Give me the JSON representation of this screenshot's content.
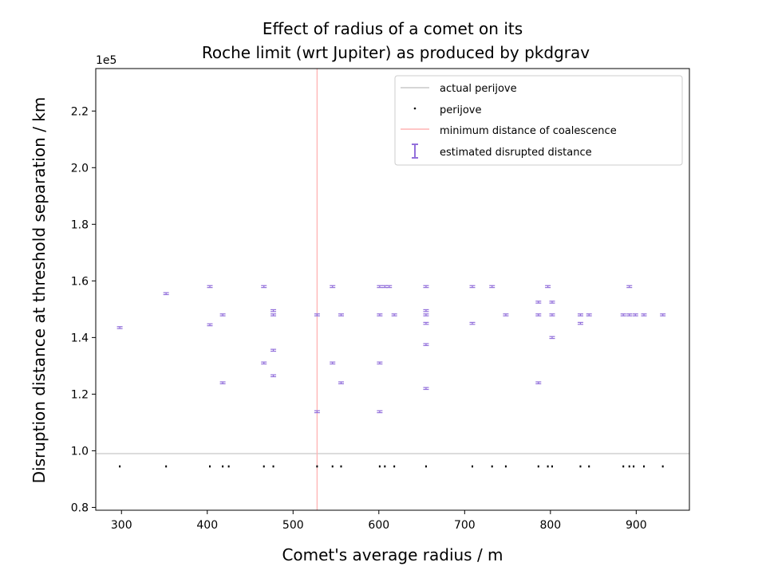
{
  "chart_data": {
    "type": "scatter",
    "title_line1": "Effect of radius of a comet on its",
    "title_line2": "Roche limit (wrt Jupiter) as produced by pkdgrav",
    "xlabel": "Comet's average radius / m",
    "ylabel": "Disruption distance at threshold separation / km",
    "y_offset_label": "1e5",
    "xlim": [
      270,
      962
    ],
    "ylim": [
      0.79,
      2.35
    ],
    "y_scale_factor": 100000,
    "x_ticks": [
      300,
      400,
      500,
      600,
      700,
      800,
      900
    ],
    "y_ticks": [
      0.8,
      1.0,
      1.2,
      1.4,
      1.6,
      1.8,
      2.0,
      2.2
    ],
    "y_tick_labels": [
      "0.8",
      "1.0",
      "1.2",
      "1.4",
      "1.6",
      "1.8",
      "2.0",
      "2.2"
    ],
    "x_tick_labels": [
      "300",
      "400",
      "500",
      "600",
      "700",
      "800",
      "900"
    ],
    "actual_perijove": 0.99,
    "min_coalescence_radius": 528,
    "legend": {
      "placement": "top-right",
      "entries": [
        "actual perijove",
        "perijove",
        "minimum distance of coalescence",
        "estimated disrupted distance"
      ]
    },
    "colors": {
      "actual_perijove": "#c8c8c8",
      "perijove": "#000000",
      "coalescence": "#ffb3b3",
      "disrupted": "#9370db"
    },
    "series": [
      {
        "name": "estimated disrupted distance",
        "points": [
          {
            "x": 298,
            "y": 1.435
          },
          {
            "x": 352,
            "y": 1.555
          },
          {
            "x": 403,
            "y": 1.58
          },
          {
            "x": 403,
            "y": 1.445
          },
          {
            "x": 418,
            "y": 1.48
          },
          {
            "x": 418,
            "y": 1.24
          },
          {
            "x": 466,
            "y": 1.58
          },
          {
            "x": 466,
            "y": 1.31
          },
          {
            "x": 477,
            "y": 1.495
          },
          {
            "x": 477,
            "y": 1.48
          },
          {
            "x": 477,
            "y": 1.355
          },
          {
            "x": 477,
            "y": 1.265
          },
          {
            "x": 528,
            "y": 1.48
          },
          {
            "x": 528,
            "y": 1.138
          },
          {
            "x": 546,
            "y": 1.58
          },
          {
            "x": 546,
            "y": 1.31
          },
          {
            "x": 556,
            "y": 1.48
          },
          {
            "x": 556,
            "y": 1.24
          },
          {
            "x": 601,
            "y": 1.58
          },
          {
            "x": 601,
            "y": 1.48
          },
          {
            "x": 601,
            "y": 1.31
          },
          {
            "x": 601,
            "y": 1.138
          },
          {
            "x": 607,
            "y": 1.58
          },
          {
            "x": 612,
            "y": 1.58
          },
          {
            "x": 618,
            "y": 1.48
          },
          {
            "x": 655,
            "y": 1.58
          },
          {
            "x": 655,
            "y": 1.495
          },
          {
            "x": 655,
            "y": 1.48
          },
          {
            "x": 655,
            "y": 1.45
          },
          {
            "x": 655,
            "y": 1.375
          },
          {
            "x": 655,
            "y": 1.22
          },
          {
            "x": 709,
            "y": 1.58
          },
          {
            "x": 709,
            "y": 1.45
          },
          {
            "x": 732,
            "y": 1.58
          },
          {
            "x": 748,
            "y": 1.48
          },
          {
            "x": 786,
            "y": 1.525
          },
          {
            "x": 786,
            "y": 1.48
          },
          {
            "x": 786,
            "y": 1.24
          },
          {
            "x": 797,
            "y": 1.58
          },
          {
            "x": 802,
            "y": 1.525
          },
          {
            "x": 802,
            "y": 1.48
          },
          {
            "x": 802,
            "y": 1.4
          },
          {
            "x": 835,
            "y": 1.48
          },
          {
            "x": 835,
            "y": 1.45
          },
          {
            "x": 845,
            "y": 1.48
          },
          {
            "x": 885,
            "y": 1.48
          },
          {
            "x": 892,
            "y": 1.58
          },
          {
            "x": 892,
            "y": 1.48
          },
          {
            "x": 899,
            "y": 1.48
          },
          {
            "x": 909,
            "y": 1.48
          },
          {
            "x": 931,
            "y": 1.48
          }
        ]
      },
      {
        "name": "perijove",
        "points": [
          {
            "x": 298,
            "y": 0.945
          },
          {
            "x": 352,
            "y": 0.945
          },
          {
            "x": 403,
            "y": 0.945
          },
          {
            "x": 418,
            "y": 0.945
          },
          {
            "x": 425,
            "y": 0.945
          },
          {
            "x": 466,
            "y": 0.945
          },
          {
            "x": 477,
            "y": 0.945
          },
          {
            "x": 528,
            "y": 0.945
          },
          {
            "x": 546,
            "y": 0.945
          },
          {
            "x": 556,
            "y": 0.945
          },
          {
            "x": 601,
            "y": 0.945
          },
          {
            "x": 607,
            "y": 0.945
          },
          {
            "x": 618,
            "y": 0.945
          },
          {
            "x": 655,
            "y": 0.945
          },
          {
            "x": 709,
            "y": 0.945
          },
          {
            "x": 732,
            "y": 0.945
          },
          {
            "x": 748,
            "y": 0.945
          },
          {
            "x": 786,
            "y": 0.945
          },
          {
            "x": 797,
            "y": 0.945
          },
          {
            "x": 802,
            "y": 0.945
          },
          {
            "x": 835,
            "y": 0.945
          },
          {
            "x": 845,
            "y": 0.945
          },
          {
            "x": 885,
            "y": 0.945
          },
          {
            "x": 892,
            "y": 0.945
          },
          {
            "x": 897,
            "y": 0.945
          },
          {
            "x": 909,
            "y": 0.945
          },
          {
            "x": 931,
            "y": 0.945
          }
        ]
      }
    ]
  }
}
